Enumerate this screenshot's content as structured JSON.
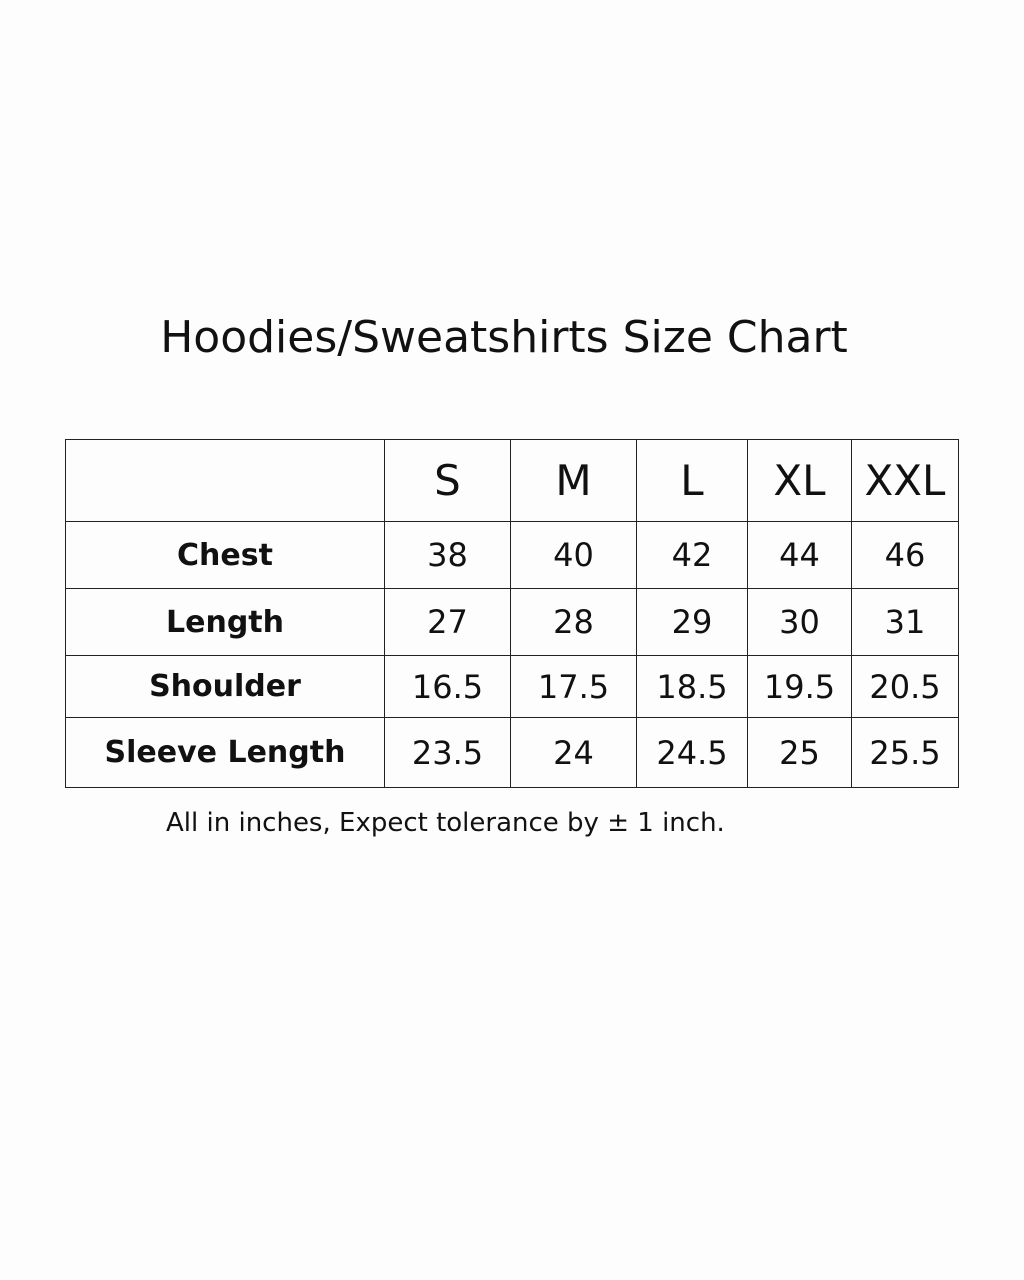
{
  "title": "Hoodies/Sweatshirts Size Chart",
  "table": {
    "headers": [
      "",
      "S",
      "M",
      "L",
      "XL",
      "XXL"
    ],
    "rows": [
      {
        "label": "Chest",
        "values": [
          "38",
          "40",
          "42",
          "44",
          "46"
        ]
      },
      {
        "label": "Length",
        "values": [
          "27",
          "28",
          "29",
          "30",
          "31"
        ]
      },
      {
        "label": "Shoulder",
        "values": [
          "16.5",
          "17.5",
          "18.5",
          "19.5",
          "20.5"
        ]
      },
      {
        "label": "Sleeve Length",
        "values": [
          "23.5",
          "24",
          "24.5",
          "25",
          "25.5"
        ]
      }
    ]
  },
  "footer": "All in inches, Expect tolerance by ± 1 inch."
}
